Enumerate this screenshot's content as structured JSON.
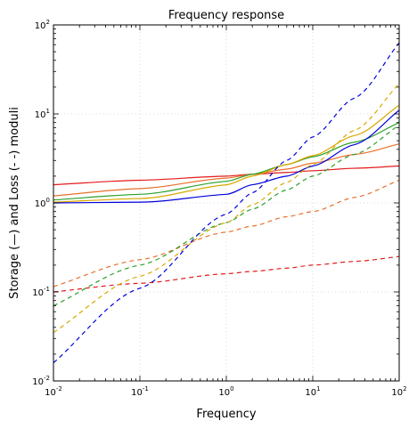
{
  "chart_data": {
    "type": "line",
    "title": "Frequency response",
    "xlabel": "Frequency",
    "ylabel": "Storage (—) and Loss (- -) moduli",
    "xscale": "log",
    "yscale": "log",
    "xlim": [
      0.01,
      100
    ],
    "ylim": [
      0.01,
      100
    ],
    "grid": true,
    "x_tick_labels": [
      {
        "base": "10",
        "exp": "-2"
      },
      {
        "base": "10",
        "exp": "-1"
      },
      {
        "base": "10",
        "exp": "0"
      },
      {
        "base": "10",
        "exp": "1"
      },
      {
        "base": "10",
        "exp": "2"
      }
    ],
    "y_tick_labels": [
      {
        "base": "10",
        "exp": "-2"
      },
      {
        "base": "10",
        "exp": "-1"
      },
      {
        "base": "10",
        "exp": "0"
      },
      {
        "base": "10",
        "exp": "1"
      },
      {
        "base": "10",
        "exp": "2"
      }
    ],
    "x": [
      0.01,
      0.1,
      1,
      2,
      5,
      10,
      30,
      100
    ],
    "series": [
      {
        "kind": "storage",
        "style": "solid",
        "color": "#e41a1c",
        "values": [
          1.6,
          1.8,
          2.0,
          2.1,
          2.2,
          2.3,
          2.45,
          2.6
        ]
      },
      {
        "kind": "storage",
        "style": "solid",
        "color": "#e8702a",
        "values": [
          1.2,
          1.45,
          1.9,
          2.1,
          2.4,
          2.8,
          3.5,
          4.6
        ]
      },
      {
        "kind": "storage",
        "style": "solid",
        "color": "#2ca02c",
        "values": [
          1.08,
          1.25,
          1.75,
          2.1,
          2.7,
          3.3,
          4.8,
          8.0
        ]
      },
      {
        "kind": "storage",
        "style": "solid",
        "color": "#d9a800",
        "values": [
          1.02,
          1.12,
          1.6,
          2.0,
          2.7,
          3.4,
          5.7,
          12.5
        ]
      },
      {
        "kind": "storage",
        "style": "solid",
        "color": "#0000dd",
        "values": [
          1.0,
          1.02,
          1.25,
          1.6,
          2.0,
          2.6,
          4.5,
          11.0
        ]
      },
      {
        "kind": "loss",
        "style": "dashed",
        "color": "#e41a1c",
        "values": [
          0.1,
          0.125,
          0.16,
          0.17,
          0.185,
          0.2,
          0.22,
          0.25
        ]
      },
      {
        "kind": "loss",
        "style": "dashed",
        "color": "#e8702a",
        "values": [
          0.115,
          0.23,
          0.47,
          0.55,
          0.7,
          0.8,
          1.15,
          1.8
        ]
      },
      {
        "kind": "loss",
        "style": "dashed",
        "color": "#2ca02c",
        "values": [
          0.07,
          0.2,
          0.6,
          0.85,
          1.4,
          2.0,
          3.5,
          7.5
        ]
      },
      {
        "kind": "loss",
        "style": "dashed",
        "color": "#d9a800",
        "values": [
          0.035,
          0.15,
          0.6,
          0.95,
          1.7,
          2.7,
          6.5,
          22
        ]
      },
      {
        "kind": "loss",
        "style": "dashed",
        "color": "#0000dd",
        "values": [
          0.016,
          0.11,
          0.75,
          1.3,
          3.0,
          5.5,
          15,
          63
        ]
      }
    ]
  }
}
